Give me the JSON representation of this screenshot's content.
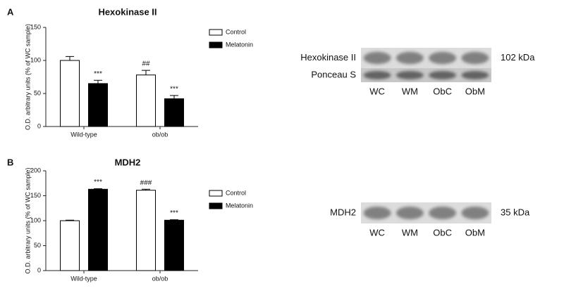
{
  "chart_data": [
    {
      "type": "bar",
      "panel": "A",
      "title": "Hexokinase II",
      "y_label": "O.D. arbitrary units (% of WC sample)",
      "categories": [
        "Wild-type",
        "ob/ob"
      ],
      "series": [
        {
          "name": "Control",
          "color": "#ffffff",
          "values": [
            100,
            78
          ],
          "errors": [
            6,
            7
          ],
          "annotations": [
            null,
            "##"
          ]
        },
        {
          "name": "Melatonin",
          "color": "#000000",
          "values": [
            65,
            42
          ],
          "errors": [
            5,
            5
          ],
          "annotations": [
            "***",
            "***"
          ]
        }
      ],
      "ylim": [
        0,
        150
      ],
      "yticks": [
        0,
        50,
        100,
        150
      ],
      "blot": {
        "rows": [
          {
            "label": "Hexokinase II",
            "size": "102 kDa"
          },
          {
            "label": "Ponceau S"
          }
        ],
        "lanes": [
          "WC",
          "WM",
          "ObC",
          "ObM"
        ]
      }
    },
    {
      "type": "bar",
      "panel": "B",
      "title": "MDH2",
      "y_label": "O.D. arbitrary units (% of WC sample)",
      "categories": [
        "Wild-type",
        "ob/ob"
      ],
      "series": [
        {
          "name": "Control",
          "color": "#ffffff",
          "values": [
            100,
            161
          ],
          "errors": [
            1,
            2
          ],
          "annotations": [
            null,
            "###"
          ]
        },
        {
          "name": "Melatonin",
          "color": "#000000",
          "values": [
            163,
            101
          ],
          "errors": [
            1,
            1
          ],
          "annotations": [
            "***",
            "***"
          ]
        }
      ],
      "ylim": [
        0,
        200
      ],
      "yticks": [
        0,
        50,
        100,
        150,
        200
      ],
      "blot": {
        "rows": [
          {
            "label": "MDH2",
            "size": "35 kDa"
          }
        ],
        "lanes": [
          "WC",
          "WM",
          "ObC",
          "ObM"
        ]
      }
    }
  ]
}
